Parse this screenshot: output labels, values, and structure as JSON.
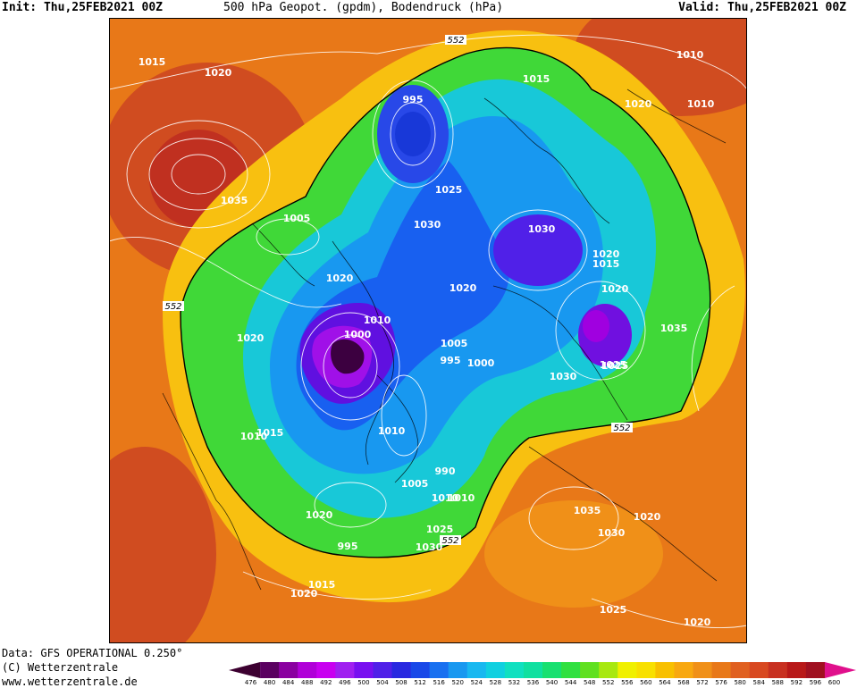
{
  "header": {
    "init": "Init: Thu,25FEB2021 00Z",
    "title": "500 hPa Geopot. (gpdm), Bodendruck (hPa)",
    "valid": "Valid: Thu,25FEB2021 00Z"
  },
  "footer": {
    "data_line": "Data: GFS OPERATIONAL 0.250°",
    "copyright": "(C) Wetterzentrale",
    "url": "www.wetterzentrale.de"
  },
  "colorbar": {
    "levels": [
      "476",
      "480",
      "484",
      "488",
      "492",
      "496",
      "500",
      "504",
      "508",
      "512",
      "516",
      "520",
      "524",
      "528",
      "532",
      "536",
      "540",
      "544",
      "548",
      "552",
      "556",
      "560",
      "564",
      "568",
      "572",
      "576",
      "580",
      "584",
      "588",
      "592",
      "596",
      "600"
    ],
    "colors": [
      "#3c0030",
      "#5a0060",
      "#8a00a0",
      "#b000d8",
      "#c800f0",
      "#a020f0",
      "#7810f0",
      "#5020e8",
      "#2828e0",
      "#1848e8",
      "#1870f0",
      "#1898f0",
      "#18b8f0",
      "#10d0e0",
      "#10e0c0",
      "#10e0a0",
      "#18e070",
      "#30e040",
      "#60e020",
      "#a8e810",
      "#f0f000",
      "#f8e000",
      "#f8c000",
      "#f8a810",
      "#f09018",
      "#e87818",
      "#e06020",
      "#d84820",
      "#c83020",
      "#b81818",
      "#a01020",
      "#e0108c"
    ]
  },
  "isobar_labels": [
    "1015",
    "1020",
    "1035",
    "1005",
    "1020",
    "1020",
    "1010",
    "1010",
    "1015",
    "1020",
    "995",
    "1000",
    "1005",
    "995",
    "1000",
    "1010",
    "1025",
    "1030",
    "1030",
    "1020",
    "1020",
    "1025",
    "1015",
    "1020",
    "1010",
    "1035",
    "1025",
    "1030",
    "1005",
    "990",
    "1010",
    "1025",
    "1030",
    "995",
    "1015",
    "1020",
    "1035",
    "1020",
    "1030",
    "1025",
    "1020",
    "1010",
    "1010",
    "1020",
    "1015"
  ],
  "height_labels": [
    "552",
    "552",
    "552",
    "552"
  ]
}
